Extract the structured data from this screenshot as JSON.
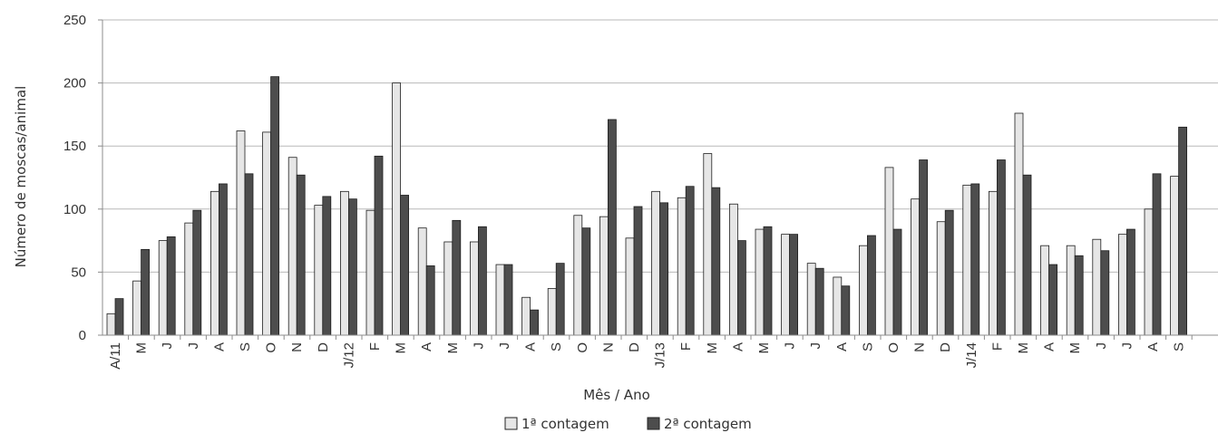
{
  "chart_data": {
    "type": "bar",
    "xlabel": "Mês / Ano",
    "ylabel": "Número de moscas/animal",
    "ylim": [
      0,
      250
    ],
    "yticks": [
      0,
      50,
      100,
      150,
      200,
      250
    ],
    "grid": true,
    "legend_position": "bottom",
    "categories": [
      "A/11",
      "M",
      "J",
      "J",
      "A",
      "S",
      "O",
      "N",
      "D",
      "J/12",
      "F",
      "M",
      "A",
      "M",
      "J",
      "J",
      "A",
      "S",
      "O",
      "N",
      "D",
      "J/13",
      "F",
      "M",
      "A",
      "M",
      "J",
      "J",
      "A",
      "S",
      "O",
      "N",
      "D",
      "J/14",
      "F",
      "M",
      "A",
      "M",
      "J",
      "J",
      "A",
      "S"
    ],
    "series": [
      {
        "name": "1ª contagem",
        "color": "#e6e6e6",
        "values": [
          17,
          43,
          75,
          89,
          114,
          162,
          161,
          141,
          103,
          114,
          99,
          200,
          85,
          74,
          74,
          56,
          30,
          37,
          95,
          94,
          77,
          114,
          109,
          144,
          104,
          84,
          80,
          57,
          46,
          71,
          133,
          108,
          90,
          119,
          114,
          176,
          71,
          71,
          76,
          80,
          100,
          126
        ]
      },
      {
        "name": "2ª contagem",
        "color": "#4d4d4d",
        "values": [
          29,
          68,
          78,
          99,
          120,
          128,
          205,
          127,
          110,
          108,
          142,
          111,
          55,
          91,
          86,
          56,
          20,
          57,
          85,
          171,
          102,
          105,
          118,
          117,
          75,
          86,
          80,
          53,
          39,
          79,
          84,
          139,
          99,
          120,
          139,
          127,
          56,
          63,
          67,
          84,
          128,
          165
        ]
      }
    ]
  }
}
